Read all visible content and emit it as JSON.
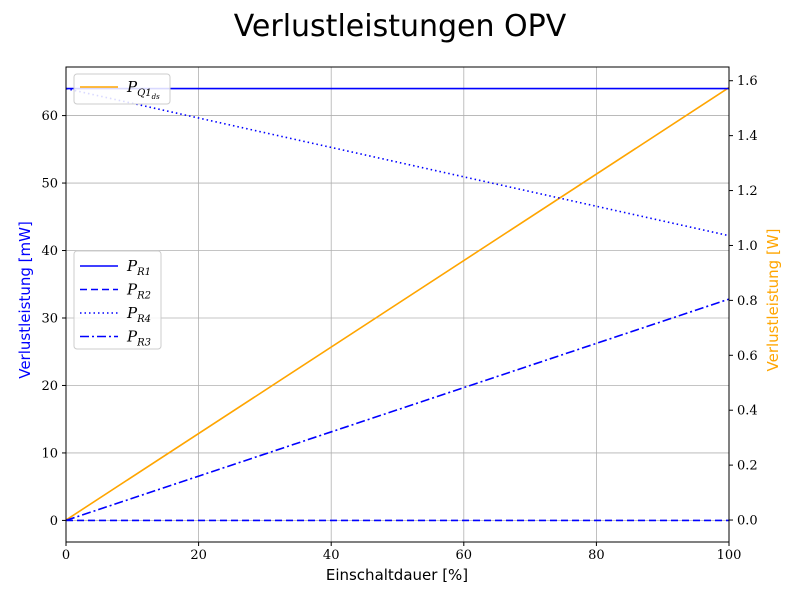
{
  "chart_data": {
    "type": "line",
    "title": "Verlustleistungen OPV",
    "xlabel": "Einschaltdauer [%]",
    "ylabel_left": "Verlustleistung [mW]",
    "ylabel_right": "Verlustleistung [W]",
    "xlim": [
      0,
      100
    ],
    "ylim_left": [
      -3.2,
      67.2
    ],
    "ylim_right": [
      -0.08,
      1.65
    ],
    "x_ticks": [
      0,
      20,
      40,
      60,
      80,
      100
    ],
    "y_ticks_left": [
      0,
      10,
      20,
      30,
      40,
      50,
      60
    ],
    "y_ticks_right": [
      "0.0",
      "0.2",
      "0.4",
      "0.6",
      "0.8",
      "1.0",
      "1.2",
      "1.4",
      "1.6"
    ],
    "grid": true,
    "series_left": [
      {
        "name": "P_R1",
        "label_main": "P",
        "label_sub": "R1",
        "color": "#0000ff",
        "dash": "solid",
        "x": [
          0,
          100
        ],
        "y": [
          64,
          64
        ]
      },
      {
        "name": "P_R2",
        "label_main": "P",
        "label_sub": "R2",
        "color": "#0000ff",
        "dash": "dashed",
        "x": [
          0,
          100
        ],
        "y": [
          0,
          0
        ]
      },
      {
        "name": "P_R4",
        "label_main": "P",
        "label_sub": "R4",
        "color": "#0000ff",
        "dash": "dotted",
        "x": [
          0,
          100
        ],
        "y": [
          64,
          42.2
        ]
      },
      {
        "name": "P_R3",
        "label_main": "P",
        "label_sub": "R3",
        "color": "#0000ff",
        "dash": "dashdot",
        "x": [
          0,
          100
        ],
        "y": [
          0,
          32.8
        ]
      }
    ],
    "series_right": [
      {
        "name": "P_Q1ds",
        "label_main": "P",
        "label_sub": "Q1",
        "label_subsub": "ds",
        "color": "#ffa500",
        "dash": "solid",
        "x": [
          0,
          100
        ],
        "y": [
          0,
          1.575
        ]
      }
    ],
    "legend_left_placement": "center-left",
    "legend_right_placement": "top-left",
    "colors": {
      "left_axis": "#0000ff",
      "right_axis": "#ffa500"
    }
  }
}
